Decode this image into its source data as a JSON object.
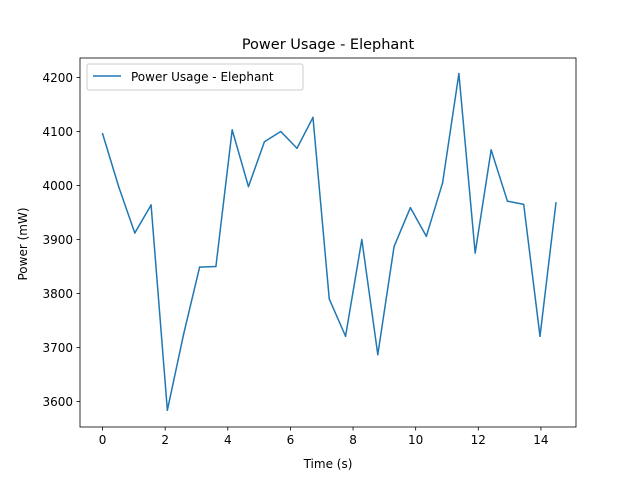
{
  "chart_data": {
    "type": "line",
    "title": "Power Usage - Elephant",
    "xlabel": "Time (s)",
    "ylabel": "Power (mW)",
    "xlim": [
      -0.72,
      15.12
    ],
    "ylim": [
      3553,
      4236
    ],
    "xticks": [
      0,
      2,
      4,
      6,
      8,
      10,
      12,
      14
    ],
    "yticks": [
      3600,
      3700,
      3800,
      3900,
      4000,
      4100,
      4200
    ],
    "grid": false,
    "legend_position": "upper left",
    "series": [
      {
        "name": "Power Usage - Elephant",
        "color": "#1f77b4",
        "x": [
          0.0,
          0.52,
          1.03,
          1.55,
          2.07,
          2.59,
          3.1,
          3.62,
          4.14,
          4.66,
          5.17,
          5.69,
          6.21,
          6.72,
          7.24,
          7.76,
          8.28,
          8.79,
          9.31,
          9.83,
          10.34,
          10.86,
          11.38,
          11.9,
          12.41,
          12.93,
          13.45,
          13.97,
          14.48
        ],
        "y": [
          4096,
          3997,
          3912,
          3964,
          3584,
          3725,
          3849,
          3850,
          4103,
          3998,
          4081,
          4100,
          4069,
          4126,
          3790,
          3721,
          3900,
          3687,
          3887,
          3959,
          3906,
          4005,
          4207,
          3875,
          4066,
          3971,
          3965,
          3721,
          3968
        ]
      }
    ]
  }
}
